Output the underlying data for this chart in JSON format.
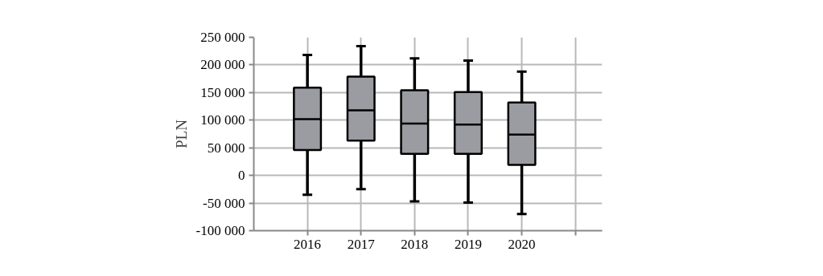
{
  "chart_data": {
    "type": "box",
    "ylabel": "PLN",
    "categories": [
      "2016",
      "2017",
      "2018",
      "2019",
      "2020"
    ],
    "boxes": [
      {
        "low": -35000,
        "q1": 46000,
        "median": 102000,
        "q3": 159000,
        "high": 218000
      },
      {
        "low": -25000,
        "q1": 63000,
        "median": 118000,
        "q3": 179000,
        "high": 234000
      },
      {
        "low": -47000,
        "q1": 39000,
        "median": 94000,
        "q3": 154000,
        "high": 212000
      },
      {
        "low": -49000,
        "q1": 39000,
        "median": 92000,
        "q3": 151000,
        "high": 208000
      },
      {
        "low": -70000,
        "q1": 19000,
        "median": 74000,
        "q3": 132000,
        "high": 188000
      }
    ],
    "color": "#9a9ca1",
    "ylim": [
      -100000,
      250000
    ],
    "yticks": [
      {
        "value": -100000,
        "label": "-100 000"
      },
      {
        "value": -50000,
        "label": "-50 000"
      },
      0,
      {
        "value": 50000,
        "label": "50 000"
      },
      {
        "value": 100000,
        "label": "100 000"
      },
      {
        "value": 150000,
        "label": "150 000"
      },
      {
        "value": 200000,
        "label": "200 000"
      },
      {
        "value": 250000,
        "label": "250 000"
      }
    ],
    "grid": true
  }
}
